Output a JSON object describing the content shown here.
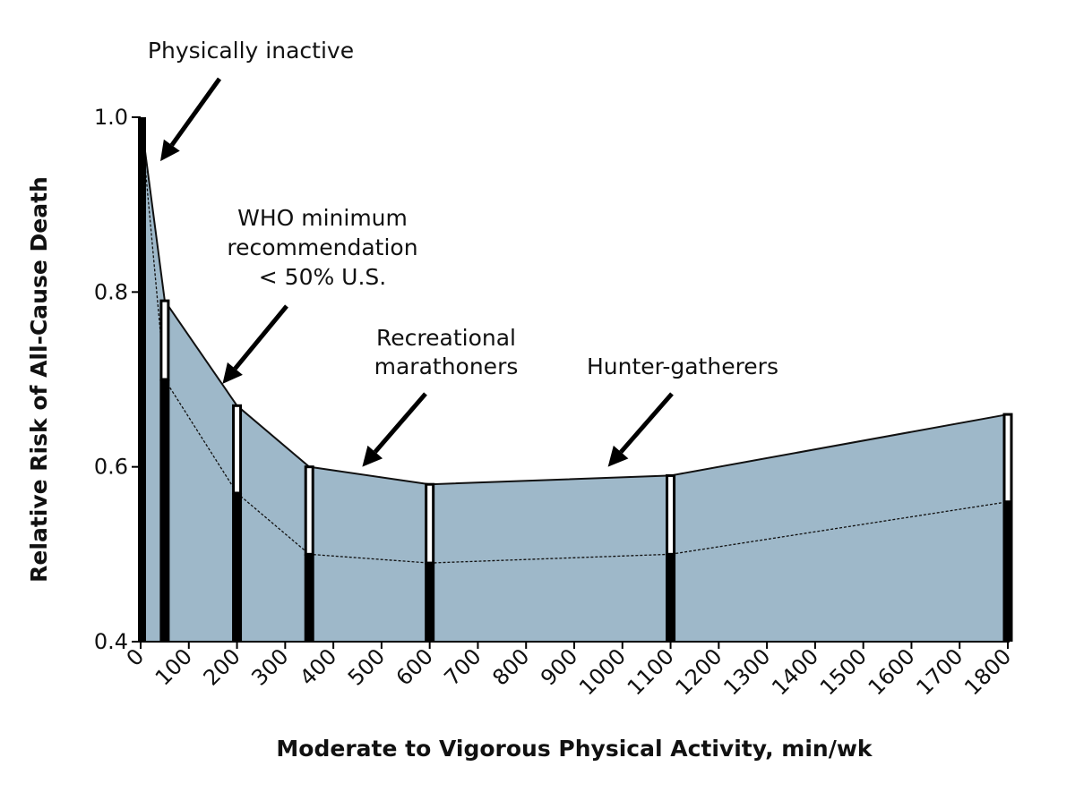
{
  "chart_data": {
    "type": "area",
    "xlabel": "Moderate to Vigorous Physical Activity, min/wk",
    "ylabel": "Relative Risk of All-Cause Death",
    "xlim": [
      0,
      1800
    ],
    "ylim": [
      0.4,
      1.0
    ],
    "x_ticks": [
      "0",
      "100",
      "200",
      "300",
      "400",
      "500",
      "600",
      "700",
      "800",
      "900",
      "1000",
      "1100",
      "1200",
      "1300",
      "1400",
      "1500",
      "1600",
      "1700",
      "1800"
    ],
    "y_ticks": [
      "0.4",
      "0.6",
      "0.8",
      "1.0"
    ],
    "series": [
      {
        "x": [
          0,
          50,
          200,
          350,
          600,
          1100,
          1800
        ],
        "lower": [
          1.0,
          0.7,
          0.57,
          0.5,
          0.49,
          0.5,
          0.56
        ],
        "upper": [
          1.0,
          0.79,
          0.67,
          0.6,
          0.58,
          0.59,
          0.66
        ]
      }
    ],
    "annotations": [
      {
        "lines": [
          "Physically inactive"
        ],
        "target_x": 0,
        "target_y": 0.96
      },
      {
        "lines": [
          "WHO minimum",
          "recommendation",
          "< 50% U.S."
        ],
        "target_x": 170,
        "target_y": 0.695
      },
      {
        "lines": [
          "Recreational",
          "marathoners"
        ],
        "target_x": 460,
        "target_y": 0.6
      },
      {
        "lines": [
          "Hunter-gatherers"
        ],
        "target_x": 970,
        "target_y": 0.6
      }
    ],
    "colors": {
      "band": "#9eb8c9",
      "bar": "#000000",
      "bar_upper": "#ffffff"
    }
  }
}
